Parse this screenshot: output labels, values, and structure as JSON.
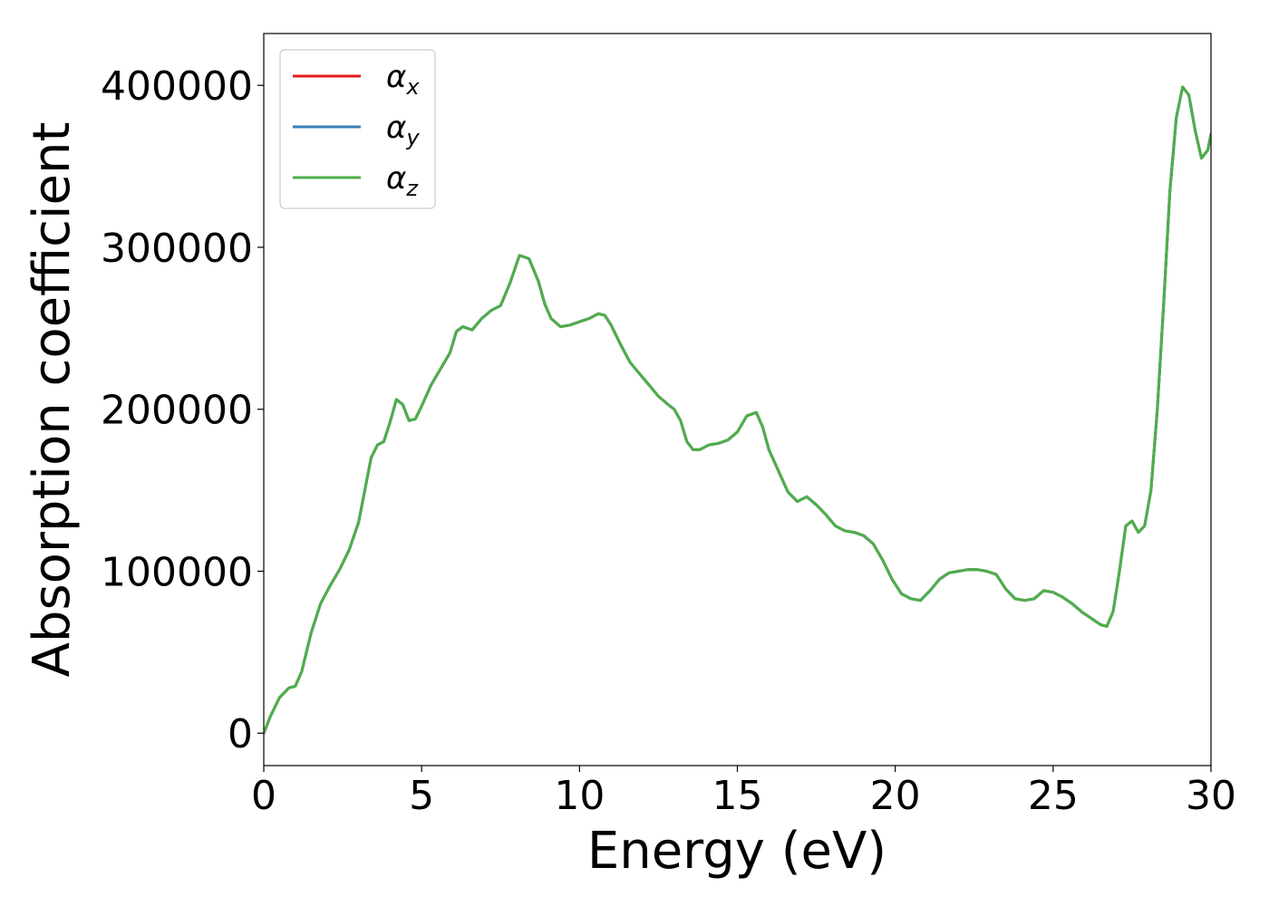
{
  "chart_data": {
    "type": "line",
    "title": "",
    "xlabel": "Energy (eV)",
    "ylabel": "Absorption coefficient",
    "xlim": [
      0,
      30
    ],
    "ylim": [
      -20000,
      432000
    ],
    "xticks": [
      0,
      5,
      10,
      15,
      20,
      25,
      30
    ],
    "yticks": [
      0,
      100000,
      200000,
      300000,
      400000
    ],
    "xtick_labels": [
      "0",
      "5",
      "10",
      "15",
      "20",
      "25",
      "30"
    ],
    "ytick_labels": [
      "0",
      "100000",
      "200000",
      "300000",
      "400000"
    ],
    "grid": false,
    "legend_position": "top-left",
    "series": [
      {
        "name": "αx",
        "symbol": "α",
        "sub": "x",
        "color": "#e41a1c",
        "x": [
          0,
          0.2,
          0.5,
          0.8,
          1.0,
          1.2,
          1.5,
          1.8,
          2.1,
          2.4,
          2.7,
          3.0,
          3.2,
          3.4,
          3.6,
          3.8,
          4.0,
          4.2,
          4.4,
          4.6,
          4.8,
          5.0,
          5.3,
          5.6,
          5.9,
          6.1,
          6.3,
          6.6,
          6.9,
          7.2,
          7.5,
          7.8,
          8.1,
          8.4,
          8.7,
          8.9,
          9.1,
          9.4,
          9.7,
          10.0,
          10.3,
          10.6,
          10.8,
          11.0,
          11.3,
          11.6,
          11.9,
          12.2,
          12.5,
          12.8,
          13.0,
          13.2,
          13.4,
          13.6,
          13.8,
          14.1,
          14.4,
          14.7,
          15.0,
          15.3,
          15.6,
          15.8,
          16.0,
          16.3,
          16.6,
          16.9,
          17.2,
          17.5,
          17.8,
          18.1,
          18.4,
          18.7,
          19.0,
          19.3,
          19.6,
          19.9,
          20.2,
          20.5,
          20.8,
          21.1,
          21.4,
          21.7,
          22.0,
          22.3,
          22.6,
          22.9,
          23.2,
          23.5,
          23.8,
          24.1,
          24.4,
          24.7,
          25.0,
          25.3,
          25.6,
          25.9,
          26.2,
          26.5,
          26.7,
          26.9,
          27.1,
          27.3,
          27.5,
          27.7,
          27.9,
          28.1,
          28.3,
          28.5,
          28.7,
          28.9,
          29.1,
          29.3,
          29.5,
          29.7,
          29.9,
          30.0
        ],
        "y": [
          0,
          10000,
          22000,
          28000,
          29000,
          38000,
          62000,
          80000,
          91000,
          101000,
          113000,
          130000,
          150000,
          170000,
          178000,
          180000,
          192000,
          206000,
          203000,
          193000,
          194000,
          202000,
          215000,
          225000,
          235000,
          248000,
          251000,
          249000,
          256000,
          261000,
          264000,
          278000,
          295000,
          293000,
          279000,
          265000,
          256000,
          251000,
          252000,
          254000,
          256000,
          259000,
          258000,
          252000,
          240000,
          229000,
          222000,
          215000,
          208000,
          203000,
          200000,
          193000,
          180000,
          175000,
          175000,
          178000,
          179000,
          181000,
          186000,
          196000,
          198000,
          189000,
          175000,
          162000,
          149000,
          143000,
          146000,
          141000,
          135000,
          128000,
          125000,
          124000,
          122000,
          117000,
          107000,
          95000,
          86000,
          83000,
          82000,
          88000,
          95000,
          99000,
          100000,
          101000,
          101000,
          100000,
          98000,
          89000,
          83000,
          82000,
          83000,
          88000,
          87000,
          84000,
          80000,
          75000,
          71000,
          67000,
          66000,
          75000,
          100000,
          128000,
          131000,
          124000,
          128000,
          150000,
          200000,
          265000,
          335000,
          380000,
          399000,
          394000,
          372000,
          355000,
          360000,
          370000
        ]
      },
      {
        "name": "αy",
        "symbol": "α",
        "sub": "y",
        "color": "#377eb8",
        "x": [
          0,
          0.2,
          0.5,
          0.8,
          1.0,
          1.2,
          1.5,
          1.8,
          2.1,
          2.4,
          2.7,
          3.0,
          3.2,
          3.4,
          3.6,
          3.8,
          4.0,
          4.2,
          4.4,
          4.6,
          4.8,
          5.0,
          5.3,
          5.6,
          5.9,
          6.1,
          6.3,
          6.6,
          6.9,
          7.2,
          7.5,
          7.8,
          8.1,
          8.4,
          8.7,
          8.9,
          9.1,
          9.4,
          9.7,
          10.0,
          10.3,
          10.6,
          10.8,
          11.0,
          11.3,
          11.6,
          11.9,
          12.2,
          12.5,
          12.8,
          13.0,
          13.2,
          13.4,
          13.6,
          13.8,
          14.1,
          14.4,
          14.7,
          15.0,
          15.3,
          15.6,
          15.8,
          16.0,
          16.3,
          16.6,
          16.9,
          17.2,
          17.5,
          17.8,
          18.1,
          18.4,
          18.7,
          19.0,
          19.3,
          19.6,
          19.9,
          20.2,
          20.5,
          20.8,
          21.1,
          21.4,
          21.7,
          22.0,
          22.3,
          22.6,
          22.9,
          23.2,
          23.5,
          23.8,
          24.1,
          24.4,
          24.7,
          25.0,
          25.3,
          25.6,
          25.9,
          26.2,
          26.5,
          26.7,
          26.9,
          27.1,
          27.3,
          27.5,
          27.7,
          27.9,
          28.1,
          28.3,
          28.5,
          28.7,
          28.9,
          29.1,
          29.3,
          29.5,
          29.7,
          29.9,
          30.0
        ],
        "y": [
          0,
          10000,
          22000,
          28000,
          29000,
          38000,
          62000,
          80000,
          91000,
          101000,
          113000,
          130000,
          150000,
          170000,
          178000,
          180000,
          192000,
          206000,
          203000,
          193000,
          194000,
          202000,
          215000,
          225000,
          235000,
          248000,
          251000,
          249000,
          256000,
          261000,
          264000,
          278000,
          295000,
          293000,
          279000,
          265000,
          256000,
          251000,
          252000,
          254000,
          256000,
          259000,
          258000,
          252000,
          240000,
          229000,
          222000,
          215000,
          208000,
          203000,
          200000,
          193000,
          180000,
          175000,
          175000,
          178000,
          179000,
          181000,
          186000,
          196000,
          198000,
          189000,
          175000,
          162000,
          149000,
          143000,
          146000,
          141000,
          135000,
          128000,
          125000,
          124000,
          122000,
          117000,
          107000,
          95000,
          86000,
          83000,
          82000,
          88000,
          95000,
          99000,
          100000,
          101000,
          101000,
          100000,
          98000,
          89000,
          83000,
          82000,
          83000,
          88000,
          87000,
          84000,
          80000,
          75000,
          71000,
          67000,
          66000,
          75000,
          100000,
          128000,
          131000,
          124000,
          128000,
          150000,
          200000,
          265000,
          335000,
          380000,
          399000,
          394000,
          372000,
          355000,
          360000,
          370000
        ]
      },
      {
        "name": "αz",
        "symbol": "α",
        "sub": "z",
        "color": "#4daf4a",
        "x": [
          0,
          0.2,
          0.5,
          0.8,
          1.0,
          1.2,
          1.5,
          1.8,
          2.1,
          2.4,
          2.7,
          3.0,
          3.2,
          3.4,
          3.6,
          3.8,
          4.0,
          4.2,
          4.4,
          4.6,
          4.8,
          5.0,
          5.3,
          5.6,
          5.9,
          6.1,
          6.3,
          6.6,
          6.9,
          7.2,
          7.5,
          7.8,
          8.1,
          8.4,
          8.7,
          8.9,
          9.1,
          9.4,
          9.7,
          10.0,
          10.3,
          10.6,
          10.8,
          11.0,
          11.3,
          11.6,
          11.9,
          12.2,
          12.5,
          12.8,
          13.0,
          13.2,
          13.4,
          13.6,
          13.8,
          14.1,
          14.4,
          14.7,
          15.0,
          15.3,
          15.6,
          15.8,
          16.0,
          16.3,
          16.6,
          16.9,
          17.2,
          17.5,
          17.8,
          18.1,
          18.4,
          18.7,
          19.0,
          19.3,
          19.6,
          19.9,
          20.2,
          20.5,
          20.8,
          21.1,
          21.4,
          21.7,
          22.0,
          22.3,
          22.6,
          22.9,
          23.2,
          23.5,
          23.8,
          24.1,
          24.4,
          24.7,
          25.0,
          25.3,
          25.6,
          25.9,
          26.2,
          26.5,
          26.7,
          26.9,
          27.1,
          27.3,
          27.5,
          27.7,
          27.9,
          28.1,
          28.3,
          28.5,
          28.7,
          28.9,
          29.1,
          29.3,
          29.5,
          29.7,
          29.9,
          30.0
        ],
        "y": [
          0,
          10000,
          22000,
          28000,
          29000,
          38000,
          62000,
          80000,
          91000,
          101000,
          113000,
          130000,
          150000,
          170000,
          178000,
          180000,
          192000,
          206000,
          203000,
          193000,
          194000,
          202000,
          215000,
          225000,
          235000,
          248000,
          251000,
          249000,
          256000,
          261000,
          264000,
          278000,
          295000,
          293000,
          279000,
          265000,
          256000,
          251000,
          252000,
          254000,
          256000,
          259000,
          258000,
          252000,
          240000,
          229000,
          222000,
          215000,
          208000,
          203000,
          200000,
          193000,
          180000,
          175000,
          175000,
          178000,
          179000,
          181000,
          186000,
          196000,
          198000,
          189000,
          175000,
          162000,
          149000,
          143000,
          146000,
          141000,
          135000,
          128000,
          125000,
          124000,
          122000,
          117000,
          107000,
          95000,
          86000,
          83000,
          82000,
          88000,
          95000,
          99000,
          100000,
          101000,
          101000,
          100000,
          98000,
          89000,
          83000,
          82000,
          83000,
          88000,
          87000,
          84000,
          80000,
          75000,
          71000,
          67000,
          66000,
          75000,
          100000,
          128000,
          131000,
          124000,
          128000,
          150000,
          200000,
          265000,
          335000,
          380000,
          399000,
          394000,
          372000,
          355000,
          360000,
          370000
        ]
      }
    ]
  }
}
